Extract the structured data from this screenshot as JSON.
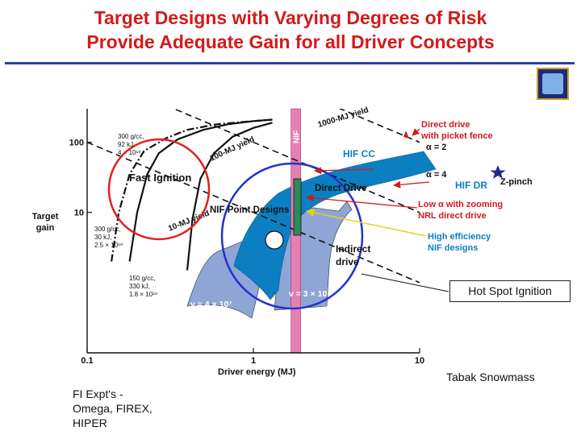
{
  "title": {
    "line1": "Target Designs with Varying Degrees of Risk",
    "line2": "Provide Adequate Gain for all Driver Concepts"
  },
  "colors": {
    "title": "#d21a1a",
    "rule": "#2b3f9e",
    "nif_band": "#e77fb3",
    "hif_band": "#0c7fc2",
    "indirect_region": "#8fa5d6",
    "circle_red": "#e02020",
    "circle_blue": "#2233cc"
  },
  "annotations": {
    "hot_spot": "Hot Spot Ignition",
    "credit": "Tabak Snowmass",
    "fi_expts": [
      "FI Expt's  -",
      "Omega, FIREX,",
      "HIPER"
    ]
  },
  "chart_data": {
    "type": "line",
    "x_scale": "log",
    "y_scale": "log",
    "xlim": [
      0.1,
      10
    ],
    "ylim": [
      0.1,
      300
    ],
    "xlabel": "Driver energy (MJ)",
    "ylabel": [
      "Target",
      "gain"
    ],
    "x_ticks": [
      {
        "v": 0.1,
        "label": "0.1"
      },
      {
        "v": 1,
        "label": "1"
      },
      {
        "v": 10,
        "label": "10"
      }
    ],
    "y_ticks": [
      {
        "v": 100,
        "label": "100"
      },
      {
        "v": 10,
        "label": "10"
      }
    ],
    "yield_lines": [
      {
        "label": "1000-MJ yield",
        "x": [
          0.5,
          10
        ],
        "y": [
          2000,
          100
        ]
      },
      {
        "label": "100-MJ yield",
        "x": [
          0.2,
          10
        ],
        "y": [
          500,
          10
        ]
      },
      {
        "label": "10-MJ yield",
        "x": [
          0.1,
          10
        ],
        "y": [
          100,
          1
        ]
      }
    ],
    "fast_ignition_curves": [
      {
        "labels": [
          "300 g/cc,",
          "92 kJ,",
          "4 × 10¹⁹"
        ],
        "x": [
          0.18,
          0.2,
          0.23,
          0.27,
          0.35,
          0.5,
          0.7,
          1.0,
          1.3
        ],
        "y": [
          2,
          10,
          35,
          70,
          110,
          150,
          180,
          200,
          210
        ]
      },
      {
        "labels": [
          "300 g/cc,",
          "30 kJ,",
          "2.5 × 10¹⁹"
        ],
        "x": [
          0.14,
          0.155,
          0.18,
          0.22,
          0.3,
          0.4,
          0.6,
          1.0,
          1.3
        ],
        "y": [
          2,
          10,
          35,
          75,
          115,
          150,
          180,
          200,
          210
        ]
      },
      {
        "labels": [
          "150 g/cc,",
          "330 kJ,",
          "1.8 × 10¹⁹"
        ],
        "x": [
          0.4,
          0.43,
          0.48,
          0.58,
          0.75,
          1.0,
          1.3
        ],
        "y": [
          1.5,
          8,
          30,
          70,
          120,
          160,
          190
        ]
      }
    ],
    "driver_labels": [
      {
        "text": "Direct drive",
        "sub": "with picket fence",
        "color": "#d21a1a"
      },
      {
        "text": "HIF CC",
        "color": "#0c7fc2"
      },
      {
        "text": "α = 2",
        "color": "#111111"
      },
      {
        "text": "α = 4",
        "color": "#111111"
      },
      {
        "text": "HIF DR",
        "color": "#0c7fc2"
      },
      {
        "text": "Z-pinch",
        "color": "#111111"
      },
      {
        "text": "Low α with zooming",
        "sub": "NRL direct drive",
        "color": "#d21a1a"
      },
      {
        "text": "High efficiency",
        "sub": "NIF designs",
        "color": "#0c7fc2"
      }
    ],
    "region_labels": [
      "Fast Ignition",
      "NIF Point Designs",
      "Direct Drive",
      "Indirect",
      "drive",
      "NIF"
    ],
    "velocity_labels": [
      "v = 4 × 10⁷",
      "v = 3 × 10⁷"
    ]
  }
}
